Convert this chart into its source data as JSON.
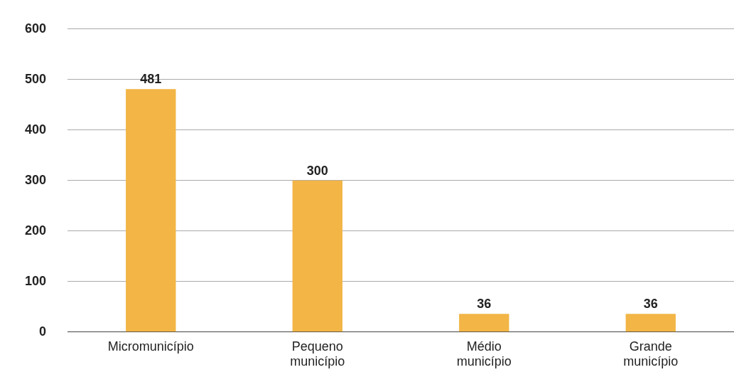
{
  "chart_data": {
    "type": "bar",
    "categories": [
      "Micromunicípio",
      "Pequeno município",
      "Médio município",
      "Grande município"
    ],
    "values": [
      481,
      300,
      36,
      36
    ],
    "color": "#f2b546",
    "ylim": [
      0,
      600
    ],
    "yticks": [
      0,
      100,
      200,
      300,
      400,
      500,
      600
    ],
    "grid": "y",
    "data_labels": true
  }
}
